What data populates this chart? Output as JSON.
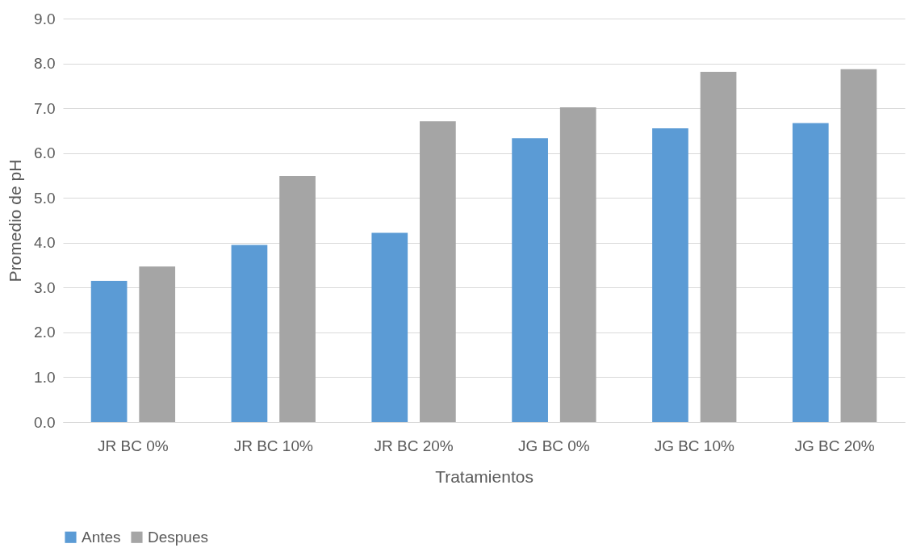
{
  "chart_data": {
    "type": "bar",
    "xlabel": "Tratamientos",
    "ylabel": "Promedio de pH",
    "categories": [
      "JR BC 0%",
      "JR BC 10%",
      "JR BC 20%",
      "JG BC 0%",
      "JG BC 10%",
      "JG BC 20%"
    ],
    "series": [
      {
        "name": "Antes",
        "color": "#5b9bd5",
        "values": [
          3.15,
          3.95,
          4.22,
          6.33,
          6.55,
          6.67
        ]
      },
      {
        "name": "Despues",
        "color": "#a5a5a5",
        "values": [
          3.47,
          5.49,
          6.71,
          7.02,
          7.81,
          7.87
        ]
      }
    ],
    "ylim": [
      0,
      9
    ],
    "yticks": [
      {
        "value": 0,
        "label": "0.0"
      },
      {
        "value": 1,
        "label": "1.0"
      },
      {
        "value": 2,
        "label": "2.0"
      },
      {
        "value": 3,
        "label": "3.0"
      },
      {
        "value": 4,
        "label": "4.0"
      },
      {
        "value": 5,
        "label": "5.0"
      },
      {
        "value": 6,
        "label": "6.0"
      },
      {
        "value": 7,
        "label": "7.0"
      },
      {
        "value": 8,
        "label": "8.0"
      },
      {
        "value": 9,
        "label": "9.0"
      }
    ],
    "grid": "y",
    "legend": "bottom"
  }
}
